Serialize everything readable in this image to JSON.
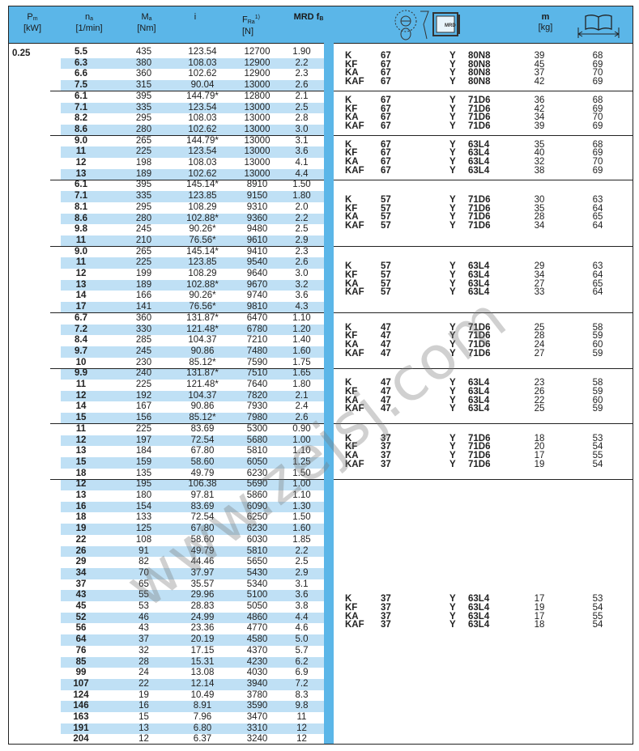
{
  "header": {
    "pm": {
      "main": "P",
      "sub": "m",
      "unit": "[kW]"
    },
    "na": {
      "main": "n",
      "sub": "a",
      "unit": "[1/min]"
    },
    "ma": {
      "main": "M",
      "sub": "a",
      "unit": "[Nm]"
    },
    "i": {
      "main": "i"
    },
    "fra": {
      "main": "F",
      "sub": "Ra",
      "sup": "1)",
      "unit": "[N]"
    },
    "mrd": {
      "main": "MRD f",
      "sub": "B"
    },
    "gear_icon": "gear-motor-drawing-icon",
    "m": {
      "main": "m",
      "unit": "[kg]"
    },
    "book_icon": "dimension-sheet-book-icon"
  },
  "colors": {
    "header": "#5bb6e8",
    "stripe": "#bfe0f5"
  },
  "power": "0.25",
  "rows": [
    [
      "5.5",
      "435",
      "123.54",
      "12700",
      "1.90"
    ],
    [
      "6.3",
      "380",
      "108.03",
      "12900",
      "2.2"
    ],
    [
      "6.6",
      "360",
      "102.62",
      "12900",
      "2.3"
    ],
    [
      "7.5",
      "315",
      "90.04",
      "13000",
      "2.6"
    ],
    [
      "6.1",
      "395",
      "144.79*",
      "12800",
      "2.1"
    ],
    [
      "7.1",
      "335",
      "123.54",
      "13000",
      "2.5"
    ],
    [
      "8.2",
      "295",
      "108.03",
      "13000",
      "2.8"
    ],
    [
      "8.6",
      "280",
      "102.62",
      "13000",
      "3.0"
    ],
    [
      "9.0",
      "265",
      "144.79*",
      "13000",
      "3.1"
    ],
    [
      "11",
      "225",
      "123.54",
      "13000",
      "3.6"
    ],
    [
      "12",
      "198",
      "108.03",
      "13000",
      "4.1"
    ],
    [
      "13",
      "189",
      "102.62",
      "13000",
      "4.4"
    ],
    [
      "6.1",
      "395",
      "145.14*",
      "8910",
      "1.50"
    ],
    [
      "7.1",
      "335",
      "123.85",
      "9150",
      "1.80"
    ],
    [
      "8.1",
      "295",
      "108.29",
      "9310",
      "2.0"
    ],
    [
      "8.6",
      "280",
      "102.88*",
      "9360",
      "2.2"
    ],
    [
      "9.8",
      "245",
      "90.26*",
      "9480",
      "2.5"
    ],
    [
      "11",
      "210",
      "76.56*",
      "9610",
      "2.9"
    ],
    [
      "9.0",
      "265",
      "145.14*",
      "9410",
      "2.3"
    ],
    [
      "11",
      "225",
      "123.85",
      "9540",
      "2.6"
    ],
    [
      "12",
      "199",
      "108.29",
      "9640",
      "3.0"
    ],
    [
      "13",
      "189",
      "102.88*",
      "9670",
      "3.2"
    ],
    [
      "14",
      "166",
      "90.26*",
      "9740",
      "3.6"
    ],
    [
      "17",
      "141",
      "76.56*",
      "9810",
      "4.3"
    ],
    [
      "6.7",
      "360",
      "131.87*",
      "6470",
      "1.10"
    ],
    [
      "7.2",
      "330",
      "121.48*",
      "6780",
      "1.20"
    ],
    [
      "8.4",
      "285",
      "104.37",
      "7210",
      "1.40"
    ],
    [
      "9.7",
      "245",
      "90.86",
      "7480",
      "1.60"
    ],
    [
      "10",
      "230",
      "85.12*",
      "7590",
      "1.75"
    ],
    [
      "9.9",
      "240",
      "131.87*",
      "7510",
      "1.65"
    ],
    [
      "11",
      "225",
      "121.48*",
      "7640",
      "1.80"
    ],
    [
      "12",
      "192",
      "104.37",
      "7820",
      "2.1"
    ],
    [
      "14",
      "167",
      "90.86",
      "7930",
      "2.4"
    ],
    [
      "15",
      "156",
      "85.12*",
      "7980",
      "2.6"
    ],
    [
      "11",
      "225",
      "83.69",
      "5300",
      "0.90"
    ],
    [
      "12",
      "197",
      "72.54",
      "5680",
      "1.00"
    ],
    [
      "13",
      "184",
      "67.80",
      "5810",
      "1.10"
    ],
    [
      "15",
      "159",
      "58.60",
      "6050",
      "1.25"
    ],
    [
      "18",
      "135",
      "49.79",
      "6230",
      "1.50"
    ],
    [
      "12",
      "195",
      "106.38",
      "5690",
      "1.00"
    ],
    [
      "13",
      "180",
      "97.81",
      "5860",
      "1.10"
    ],
    [
      "16",
      "154",
      "83.69",
      "6090",
      "1.30"
    ],
    [
      "18",
      "133",
      "72.54",
      "6250",
      "1.50"
    ],
    [
      "19",
      "125",
      "67.80",
      "6230",
      "1.60"
    ],
    [
      "22",
      "108",
      "58.60",
      "6030",
      "1.85"
    ],
    [
      "26",
      "91",
      "49.79",
      "5810",
      "2.2"
    ],
    [
      "29",
      "82",
      "44.46",
      "5650",
      "2.5"
    ],
    [
      "34",
      "70",
      "37.97",
      "5430",
      "2.9"
    ],
    [
      "37",
      "65",
      "35.57",
      "5340",
      "3.1"
    ],
    [
      "43",
      "55",
      "29.96",
      "5100",
      "3.6"
    ],
    [
      "45",
      "53",
      "28.83",
      "5050",
      "3.8"
    ],
    [
      "52",
      "46",
      "24.99",
      "4860",
      "4.4"
    ],
    [
      "56",
      "43",
      "23.36",
      "4770",
      "4.6"
    ],
    [
      "64",
      "37",
      "20.19",
      "4580",
      "5.0"
    ],
    [
      "76",
      "32",
      "17.15",
      "4370",
      "5.7"
    ],
    [
      "85",
      "28",
      "15.31",
      "4230",
      "6.2"
    ],
    [
      "99",
      "24",
      "13.08",
      "4030",
      "6.9"
    ],
    [
      "107",
      "22",
      "12.14",
      "3940",
      "7.2"
    ],
    [
      "124",
      "19",
      "10.49",
      "3780",
      "8.3"
    ],
    [
      "146",
      "16",
      "8.91",
      "3590",
      "9.8"
    ],
    [
      "163",
      "15",
      "7.96",
      "3470",
      "11"
    ],
    [
      "191",
      "13",
      "6.80",
      "3310",
      "12"
    ],
    [
      "204",
      "12",
      "6.37",
      "3240",
      "12"
    ]
  ],
  "groups": [
    {
      "rows": 4,
      "lines": [
        [
          "K",
          "67",
          "Y",
          "80N8",
          "39",
          "68"
        ],
        [
          "KF",
          "67",
          "Y",
          "80N8",
          "45",
          "69"
        ],
        [
          "KA",
          "67",
          "Y",
          "80N8",
          "37",
          "70"
        ],
        [
          "KAF",
          "67",
          "Y",
          "80N8",
          "42",
          "69"
        ]
      ]
    },
    {
      "rows": 4,
      "lines": [
        [
          "K",
          "67",
          "Y",
          "71D6",
          "36",
          "68"
        ],
        [
          "KF",
          "67",
          "Y",
          "71D6",
          "42",
          "69"
        ],
        [
          "KA",
          "67",
          "Y",
          "71D6",
          "34",
          "70"
        ],
        [
          "KAF",
          "67",
          "Y",
          "71D6",
          "39",
          "69"
        ]
      ]
    },
    {
      "rows": 4,
      "lines": [
        [
          "K",
          "67",
          "Y",
          "63L4",
          "35",
          "68"
        ],
        [
          "KF",
          "67",
          "Y",
          "63L4",
          "40",
          "69"
        ],
        [
          "KA",
          "67",
          "Y",
          "63L4",
          "32",
          "70"
        ],
        [
          "KAF",
          "67",
          "Y",
          "63L4",
          "38",
          "69"
        ]
      ]
    },
    {
      "rows": 6,
      "lines": [
        [
          "K",
          "57",
          "Y",
          "71D6",
          "30",
          "63"
        ],
        [
          "KF",
          "57",
          "Y",
          "71D6",
          "35",
          "64"
        ],
        [
          "KA",
          "57",
          "Y",
          "71D6",
          "28",
          "65"
        ],
        [
          "KAF",
          "57",
          "Y",
          "71D6",
          "34",
          "64"
        ]
      ]
    },
    {
      "rows": 6,
      "lines": [
        [
          "K",
          "57",
          "Y",
          "63L4",
          "29",
          "63"
        ],
        [
          "KF",
          "57",
          "Y",
          "63L4",
          "34",
          "64"
        ],
        [
          "KA",
          "57",
          "Y",
          "63L4",
          "27",
          "65"
        ],
        [
          "KAF",
          "57",
          "Y",
          "63L4",
          "33",
          "64"
        ]
      ]
    },
    {
      "rows": 5,
      "lines": [
        [
          "K",
          "47",
          "Y",
          "71D6",
          "25",
          "58"
        ],
        [
          "KF",
          "47",
          "Y",
          "71D6",
          "28",
          "59"
        ],
        [
          "KA",
          "47",
          "Y",
          "71D6",
          "24",
          "60"
        ],
        [
          "KAF",
          "47",
          "Y",
          "71D6",
          "27",
          "59"
        ]
      ]
    },
    {
      "rows": 5,
      "lines": [
        [
          "K",
          "47",
          "Y",
          "63L4",
          "23",
          "58"
        ],
        [
          "KF",
          "47",
          "Y",
          "63L4",
          "26",
          "59"
        ],
        [
          "KA",
          "47",
          "Y",
          "63L4",
          "22",
          "60"
        ],
        [
          "KAF",
          "47",
          "Y",
          "63L4",
          "25",
          "59"
        ]
      ]
    },
    {
      "rows": 5,
      "lines": [
        [
          "K",
          "37",
          "Y",
          "71D6",
          "18",
          "53"
        ],
        [
          "KF",
          "37",
          "Y",
          "71D6",
          "20",
          "54"
        ],
        [
          "KA",
          "37",
          "Y",
          "71D6",
          "17",
          "55"
        ],
        [
          "KAF",
          "37",
          "Y",
          "71D6",
          "19",
          "54"
        ]
      ]
    },
    {
      "rows": 24,
      "lines": [
        [
          "K",
          "37",
          "Y",
          "63L4",
          "17",
          "53"
        ],
        [
          "KF",
          "37",
          "Y",
          "63L4",
          "19",
          "54"
        ],
        [
          "KA",
          "37",
          "Y",
          "63L4",
          "17",
          "55"
        ],
        [
          "KAF",
          "37",
          "Y",
          "63L4",
          "18",
          "54"
        ]
      ]
    }
  ],
  "watermark": "www.zejsj.com"
}
